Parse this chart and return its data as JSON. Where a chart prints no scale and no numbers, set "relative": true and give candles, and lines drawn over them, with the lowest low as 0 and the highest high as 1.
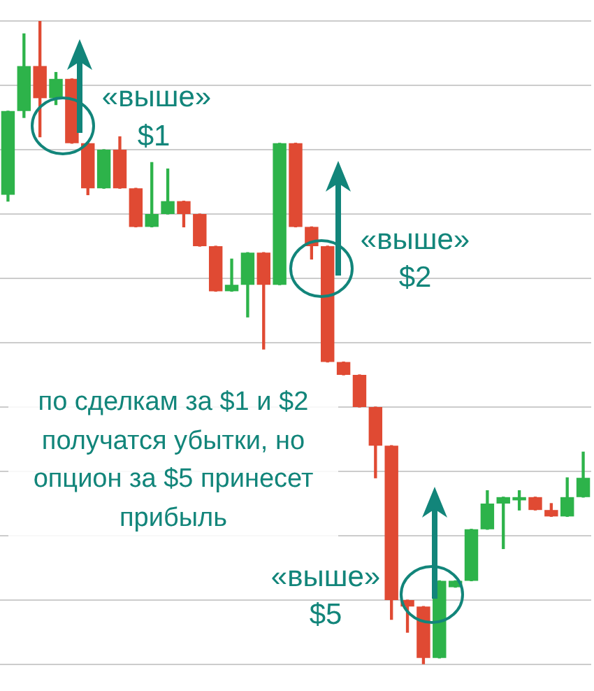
{
  "chart_data": {
    "type": "candlestick",
    "relative": true,
    "grid": "y",
    "categories": [
      null,
      null,
      null,
      null,
      null,
      null,
      null,
      null,
      null,
      null,
      null,
      null,
      null,
      null,
      null,
      null,
      null,
      null,
      null,
      null,
      null,
      null,
      null,
      null,
      null,
      null,
      null,
      null,
      null,
      null,
      null,
      null,
      null,
      null,
      null,
      null,
      null
    ],
    "ohlc": [
      [
        0.73,
        0.86,
        0.72,
        0.86
      ],
      [
        0.86,
        0.98,
        0.85,
        0.93
      ],
      [
        0.93,
        1.0,
        0.82,
        0.88
      ],
      [
        0.88,
        0.92,
        0.87,
        0.91
      ],
      [
        0.91,
        0.91,
        0.81,
        0.81
      ],
      [
        0.81,
        0.81,
        0.73,
        0.74
      ],
      [
        0.74,
        0.8,
        0.74,
        0.8
      ],
      [
        0.8,
        0.82,
        0.74,
        0.74
      ],
      [
        0.74,
        0.74,
        0.68,
        0.68
      ],
      [
        0.68,
        0.78,
        0.68,
        0.7
      ],
      [
        0.7,
        0.77,
        0.7,
        0.72
      ],
      [
        0.72,
        0.72,
        0.68,
        0.7
      ],
      [
        0.7,
        0.7,
        0.65,
        0.65
      ],
      [
        0.65,
        0.65,
        0.58,
        0.58
      ],
      [
        0.58,
        0.63,
        0.58,
        0.59
      ],
      [
        0.59,
        0.64,
        0.54,
        0.64
      ],
      [
        0.64,
        0.64,
        0.49,
        0.59
      ],
      [
        0.59,
        0.81,
        0.59,
        0.81
      ],
      [
        0.81,
        0.81,
        0.68,
        0.68
      ],
      [
        0.68,
        0.68,
        0.63,
        0.65
      ],
      [
        0.65,
        0.65,
        0.47,
        0.47
      ],
      [
        0.47,
        0.47,
        0.45,
        0.45
      ],
      [
        0.45,
        0.45,
        0.4,
        0.4
      ],
      [
        0.4,
        0.4,
        0.29,
        0.34
      ],
      [
        0.34,
        0.34,
        0.07,
        0.1
      ],
      [
        0.1,
        0.1,
        0.05,
        0.09
      ],
      [
        0.09,
        0.09,
        0.0,
        0.01
      ],
      [
        0.01,
        0.13,
        0.01,
        0.13
      ],
      [
        0.12,
        0.13,
        0.12,
        0.13
      ],
      [
        0.13,
        0.21,
        0.13,
        0.21
      ],
      [
        0.21,
        0.27,
        0.21,
        0.25
      ],
      [
        0.25,
        0.26,
        0.18,
        0.26
      ],
      [
        0.255,
        0.27,
        0.24,
        0.26
      ],
      [
        0.26,
        0.26,
        0.24,
        0.24
      ],
      [
        0.24,
        0.25,
        0.23,
        0.23
      ],
      [
        0.23,
        0.29,
        0.23,
        0.26
      ],
      [
        0.26,
        0.33,
        0.26,
        0.29
      ]
    ],
    "annotations": [
      "«выше»",
      "$1",
      "«выше»",
      "$2",
      "по сделкам за $1 и $2 получатся убытки, но опцион за $5 принесет прибыль",
      "«выше»",
      "$5"
    ]
  }
}
